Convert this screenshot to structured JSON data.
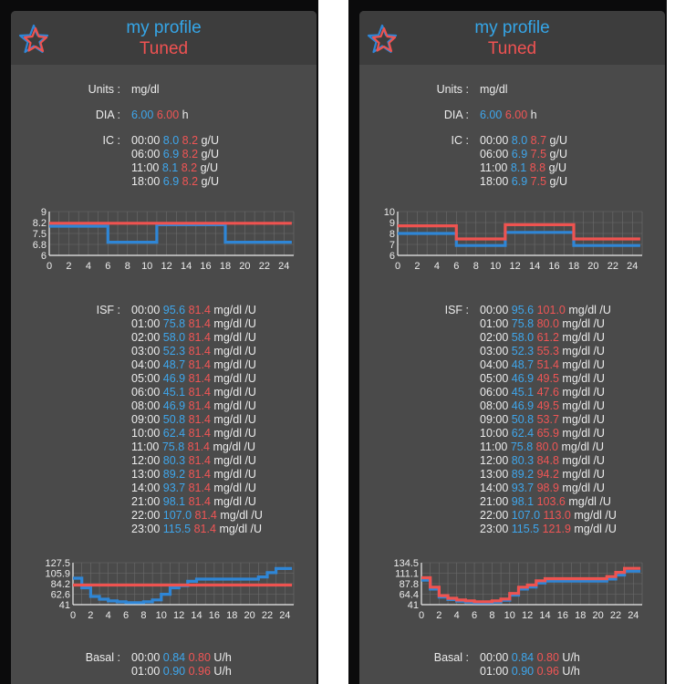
{
  "screens": [
    {
      "title": "my profile",
      "subtitle": "Tuned",
      "units_label": "Units",
      "units_value": "mg/dl",
      "dia_label": "DIA",
      "dia_profile": "6.00",
      "dia_tuned": "6.00",
      "dia_unit": "h",
      "ic_label": "IC",
      "ic_unit": "g/U",
      "ic_rows": [
        {
          "time": "00:00",
          "profile": "8.0",
          "tuned": "8.2"
        },
        {
          "time": "06:00",
          "profile": "6.9",
          "tuned": "8.2"
        },
        {
          "time": "11:00",
          "profile": "8.1",
          "tuned": "8.2"
        },
        {
          "time": "18:00",
          "profile": "6.9",
          "tuned": "8.2"
        }
      ],
      "ic_chart": {
        "type": "line",
        "yticks": [
          "9",
          "8.2",
          "7.5",
          "6.8",
          "6"
        ],
        "xticks": [
          "0",
          "2",
          "4",
          "6",
          "8",
          "10",
          "12",
          "14",
          "16",
          "18",
          "20",
          "22",
          "24"
        ],
        "ylim": [
          6,
          9
        ],
        "series": [
          {
            "color": "#2f86d6",
            "points": [
              [
                0,
                8.0
              ],
              [
                6,
                8.0
              ],
              [
                6,
                6.9
              ],
              [
                11,
                6.9
              ],
              [
                11,
                8.1
              ],
              [
                18,
                8.1
              ],
              [
                18,
                6.9
              ],
              [
                24.8,
                6.9
              ]
            ]
          },
          {
            "color": "#ef5350",
            "points": [
              [
                0,
                8.2
              ],
              [
                24.8,
                8.2
              ]
            ]
          }
        ]
      },
      "isf_label": "ISF",
      "isf_unit": "mg/dl /U",
      "isf_rows": [
        {
          "time": "00:00",
          "profile": "95.6",
          "tuned": "81.4"
        },
        {
          "time": "01:00",
          "profile": "75.8",
          "tuned": "81.4"
        },
        {
          "time": "02:00",
          "profile": "58.0",
          "tuned": "81.4"
        },
        {
          "time": "03:00",
          "profile": "52.3",
          "tuned": "81.4"
        },
        {
          "time": "04:00",
          "profile": "48.7",
          "tuned": "81.4"
        },
        {
          "time": "05:00",
          "profile": "46.9",
          "tuned": "81.4"
        },
        {
          "time": "06:00",
          "profile": "45.1",
          "tuned": "81.4"
        },
        {
          "time": "08:00",
          "profile": "46.9",
          "tuned": "81.4"
        },
        {
          "time": "09:00",
          "profile": "50.8",
          "tuned": "81.4"
        },
        {
          "time": "10:00",
          "profile": "62.4",
          "tuned": "81.4"
        },
        {
          "time": "11:00",
          "profile": "75.8",
          "tuned": "81.4"
        },
        {
          "time": "12:00",
          "profile": "80.3",
          "tuned": "81.4"
        },
        {
          "time": "13:00",
          "profile": "89.2",
          "tuned": "81.4"
        },
        {
          "time": "14:00",
          "profile": "93.7",
          "tuned": "81.4"
        },
        {
          "time": "21:00",
          "profile": "98.1",
          "tuned": "81.4"
        },
        {
          "time": "22:00",
          "profile": "107.0",
          "tuned": "81.4"
        },
        {
          "time": "23:00",
          "profile": "115.5",
          "tuned": "81.4"
        }
      ],
      "isf_chart": {
        "type": "line",
        "yticks": [
          "127.5",
          "105.9",
          "84.2",
          "62.6",
          "41"
        ],
        "xticks": [
          "0",
          "2",
          "4",
          "6",
          "8",
          "10",
          "12",
          "14",
          "16",
          "18",
          "20",
          "22",
          "24"
        ],
        "ylim": [
          41,
          127.5
        ],
        "series": [
          {
            "color": "#2f86d6",
            "points": [
              [
                0,
                95.6
              ],
              [
                1,
                95.6
              ],
              [
                1,
                75.8
              ],
              [
                2,
                75.8
              ],
              [
                2,
                58.0
              ],
              [
                3,
                58.0
              ],
              [
                3,
                52.3
              ],
              [
                4,
                52.3
              ],
              [
                4,
                48.7
              ],
              [
                5,
                48.7
              ],
              [
                5,
                46.9
              ],
              [
                6,
                46.9
              ],
              [
                6,
                45.1
              ],
              [
                8,
                45.1
              ],
              [
                8,
                46.9
              ],
              [
                9,
                46.9
              ],
              [
                9,
                50.8
              ],
              [
                10,
                50.8
              ],
              [
                10,
                62.4
              ],
              [
                11,
                62.4
              ],
              [
                11,
                75.8
              ],
              [
                12,
                75.8
              ],
              [
                12,
                80.3
              ],
              [
                13,
                80.3
              ],
              [
                13,
                89.2
              ],
              [
                14,
                89.2
              ],
              [
                14,
                93.7
              ],
              [
                21,
                93.7
              ],
              [
                21,
                98.1
              ],
              [
                22,
                98.1
              ],
              [
                22,
                107.0
              ],
              [
                23,
                107.0
              ],
              [
                23,
                115.5
              ],
              [
                24.8,
                115.5
              ]
            ]
          },
          {
            "color": "#ef5350",
            "points": [
              [
                0,
                81.4
              ],
              [
                24.8,
                81.4
              ]
            ]
          }
        ]
      },
      "basal_label": "Basal",
      "basal_unit": "U/h",
      "basal_rows": [
        {
          "time": "00:00",
          "profile": "0.84",
          "tuned": "0.80"
        },
        {
          "time": "01:00",
          "profile": "0.90",
          "tuned": "0.96"
        }
      ]
    },
    {
      "title": "my profile",
      "subtitle": "Tuned",
      "units_label": "Units",
      "units_value": "mg/dl",
      "dia_label": "DIA",
      "dia_profile": "6.00",
      "dia_tuned": "6.00",
      "dia_unit": "h",
      "ic_label": "IC",
      "ic_unit": "g/U",
      "ic_rows": [
        {
          "time": "00:00",
          "profile": "8.0",
          "tuned": "8.7"
        },
        {
          "time": "06:00",
          "profile": "6.9",
          "tuned": "7.5"
        },
        {
          "time": "11:00",
          "profile": "8.1",
          "tuned": "8.8"
        },
        {
          "time": "18:00",
          "profile": "6.9",
          "tuned": "7.5"
        }
      ],
      "ic_chart": {
        "type": "line",
        "yticks": [
          "10",
          "9",
          "8",
          "7",
          "6"
        ],
        "xticks": [
          "0",
          "2",
          "4",
          "6",
          "8",
          "10",
          "12",
          "14",
          "16",
          "18",
          "20",
          "22",
          "24"
        ],
        "ylim": [
          6,
          10
        ],
        "series": [
          {
            "color": "#2f86d6",
            "points": [
              [
                0,
                8.0
              ],
              [
                6,
                8.0
              ],
              [
                6,
                6.9
              ],
              [
                11,
                6.9
              ],
              [
                11,
                8.1
              ],
              [
                18,
                8.1
              ],
              [
                18,
                6.9
              ],
              [
                24.8,
                6.9
              ]
            ]
          },
          {
            "color": "#ef5350",
            "points": [
              [
                0,
                8.7
              ],
              [
                6,
                8.7
              ],
              [
                6,
                7.5
              ],
              [
                11,
                7.5
              ],
              [
                11,
                8.8
              ],
              [
                18,
                8.8
              ],
              [
                18,
                7.5
              ],
              [
                24.8,
                7.5
              ]
            ]
          }
        ]
      },
      "isf_label": "ISF",
      "isf_unit": "mg/dl /U",
      "isf_rows": [
        {
          "time": "00:00",
          "profile": "95.6",
          "tuned": "101.0"
        },
        {
          "time": "01:00",
          "profile": "75.8",
          "tuned": "80.0"
        },
        {
          "time": "02:00",
          "profile": "58.0",
          "tuned": "61.2"
        },
        {
          "time": "03:00",
          "profile": "52.3",
          "tuned": "55.3"
        },
        {
          "time": "04:00",
          "profile": "48.7",
          "tuned": "51.4"
        },
        {
          "time": "05:00",
          "profile": "46.9",
          "tuned": "49.5"
        },
        {
          "time": "06:00",
          "profile": "45.1",
          "tuned": "47.6"
        },
        {
          "time": "08:00",
          "profile": "46.9",
          "tuned": "49.5"
        },
        {
          "time": "09:00",
          "profile": "50.8",
          "tuned": "53.7"
        },
        {
          "time": "10:00",
          "profile": "62.4",
          "tuned": "65.9"
        },
        {
          "time": "11:00",
          "profile": "75.8",
          "tuned": "80.0"
        },
        {
          "time": "12:00",
          "profile": "80.3",
          "tuned": "84.8"
        },
        {
          "time": "13:00",
          "profile": "89.2",
          "tuned": "94.2"
        },
        {
          "time": "14:00",
          "profile": "93.7",
          "tuned": "98.9"
        },
        {
          "time": "21:00",
          "profile": "98.1",
          "tuned": "103.6"
        },
        {
          "time": "22:00",
          "profile": "107.0",
          "tuned": "113.0"
        },
        {
          "time": "23:00",
          "profile": "115.5",
          "tuned": "121.9"
        }
      ],
      "isf_chart": {
        "type": "line",
        "yticks": [
          "134.5",
          "111.1",
          "87.8",
          "64.4",
          "41"
        ],
        "xticks": [
          "0",
          "2",
          "4",
          "6",
          "8",
          "10",
          "12",
          "14",
          "16",
          "18",
          "20",
          "22",
          "24"
        ],
        "ylim": [
          41,
          134.5
        ],
        "series": [
          {
            "color": "#2f86d6",
            "points": [
              [
                0,
                95.6
              ],
              [
                1,
                95.6
              ],
              [
                1,
                75.8
              ],
              [
                2,
                75.8
              ],
              [
                2,
                58.0
              ],
              [
                3,
                58.0
              ],
              [
                3,
                52.3
              ],
              [
                4,
                52.3
              ],
              [
                4,
                48.7
              ],
              [
                5,
                48.7
              ],
              [
                5,
                46.9
              ],
              [
                6,
                46.9
              ],
              [
                6,
                45.1
              ],
              [
                8,
                45.1
              ],
              [
                8,
                46.9
              ],
              [
                9,
                46.9
              ],
              [
                9,
                50.8
              ],
              [
                10,
                50.8
              ],
              [
                10,
                62.4
              ],
              [
                11,
                62.4
              ],
              [
                11,
                75.8
              ],
              [
                12,
                75.8
              ],
              [
                12,
                80.3
              ],
              [
                13,
                80.3
              ],
              [
                13,
                89.2
              ],
              [
                14,
                89.2
              ],
              [
                14,
                93.7
              ],
              [
                21,
                93.7
              ],
              [
                21,
                98.1
              ],
              [
                22,
                98.1
              ],
              [
                22,
                107.0
              ],
              [
                23,
                107.0
              ],
              [
                23,
                115.5
              ],
              [
                24.8,
                115.5
              ]
            ]
          },
          {
            "color": "#ef5350",
            "points": [
              [
                0,
                101.0
              ],
              [
                1,
                101.0
              ],
              [
                1,
                80.0
              ],
              [
                2,
                80.0
              ],
              [
                2,
                61.2
              ],
              [
                3,
                61.2
              ],
              [
                3,
                55.3
              ],
              [
                4,
                55.3
              ],
              [
                4,
                51.4
              ],
              [
                5,
                51.4
              ],
              [
                5,
                49.5
              ],
              [
                6,
                49.5
              ],
              [
                6,
                47.6
              ],
              [
                8,
                47.6
              ],
              [
                8,
                49.5
              ],
              [
                9,
                49.5
              ],
              [
                9,
                53.7
              ],
              [
                10,
                53.7
              ],
              [
                10,
                65.9
              ],
              [
                11,
                65.9
              ],
              [
                11,
                80.0
              ],
              [
                12,
                80.0
              ],
              [
                12,
                84.8
              ],
              [
                13,
                84.8
              ],
              [
                13,
                94.2
              ],
              [
                14,
                94.2
              ],
              [
                14,
                98.9
              ],
              [
                21,
                98.9
              ],
              [
                21,
                103.6
              ],
              [
                22,
                103.6
              ],
              [
                22,
                113.0
              ],
              [
                23,
                113.0
              ],
              [
                23,
                121.9
              ],
              [
                24.8,
                121.9
              ]
            ]
          }
        ]
      },
      "basal_label": "Basal",
      "basal_unit": "U/h",
      "basal_rows": [
        {
          "time": "00:00",
          "profile": "0.84",
          "tuned": "0.80"
        },
        {
          "time": "01:00",
          "profile": "0.90",
          "tuned": "0.96"
        }
      ]
    }
  ]
}
